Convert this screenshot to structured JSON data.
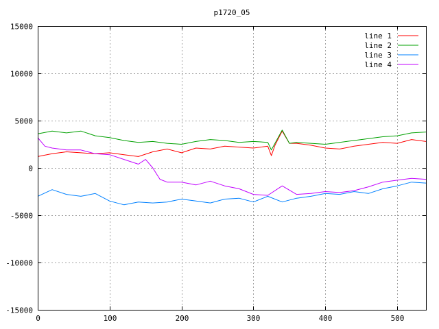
{
  "chart_data": {
    "type": "line",
    "title": "p1720_05",
    "xlabel": "",
    "ylabel": "",
    "xlim": [
      0,
      540
    ],
    "ylim": [
      -15000,
      15000
    ],
    "x_ticks": [
      0,
      100,
      200,
      300,
      400,
      500
    ],
    "y_ticks": [
      -15000,
      -10000,
      -5000,
      0,
      5000,
      10000,
      15000
    ],
    "grid": true,
    "legend_position": "top-right",
    "series": [
      {
        "name": "line 1",
        "color": "#ff0000",
        "x": [
          0,
          20,
          40,
          60,
          80,
          100,
          120,
          140,
          160,
          180,
          200,
          220,
          240,
          260,
          280,
          300,
          320,
          325,
          330,
          340,
          350,
          360,
          380,
          400,
          420,
          440,
          460,
          480,
          500,
          520,
          540
        ],
        "values": [
          1200,
          1500,
          1700,
          1600,
          1500,
          1600,
          1400,
          1200,
          1700,
          2000,
          1600,
          2100,
          2000,
          2300,
          2200,
          2100,
          2300,
          1300,
          2400,
          3900,
          2600,
          2600,
          2400,
          2100,
          2000,
          2300,
          2500,
          2700,
          2600,
          3000,
          2800
        ]
      },
      {
        "name": "line 2",
        "color": "#00a000",
        "x": [
          0,
          20,
          40,
          60,
          80,
          100,
          120,
          140,
          160,
          180,
          200,
          220,
          240,
          260,
          280,
          300,
          320,
          325,
          330,
          340,
          350,
          360,
          380,
          400,
          420,
          440,
          460,
          480,
          500,
          520,
          540
        ],
        "values": [
          3600,
          3900,
          3700,
          3900,
          3400,
          3200,
          2900,
          2700,
          2800,
          2600,
          2500,
          2800,
          3000,
          2900,
          2700,
          2800,
          2700,
          1900,
          2600,
          4000,
          2600,
          2700,
          2600,
          2500,
          2700,
          2900,
          3100,
          3300,
          3400,
          3700,
          3800
        ]
      },
      {
        "name": "line 3",
        "color": "#0080ff",
        "x": [
          0,
          20,
          40,
          60,
          80,
          100,
          120,
          140,
          160,
          180,
          200,
          220,
          240,
          260,
          280,
          300,
          320,
          340,
          360,
          380,
          400,
          420,
          440,
          460,
          480,
          500,
          520,
          540
        ],
        "values": [
          -3000,
          -2300,
          -2800,
          -3000,
          -2700,
          -3500,
          -3900,
          -3600,
          -3700,
          -3600,
          -3300,
          -3500,
          -3700,
          -3300,
          -3200,
          -3600,
          -3000,
          -3600,
          -3200,
          -3000,
          -2700,
          -2800,
          -2500,
          -2700,
          -2200,
          -1900,
          -1500,
          -1600
        ]
      },
      {
        "name": "line 4",
        "color": "#c000ff",
        "x": [
          0,
          10,
          20,
          40,
          60,
          80,
          100,
          120,
          140,
          150,
          160,
          170,
          180,
          200,
          220,
          240,
          260,
          280,
          300,
          320,
          340,
          360,
          380,
          400,
          420,
          440,
          460,
          480,
          500,
          520,
          540
        ],
        "values": [
          3200,
          2300,
          2100,
          1900,
          1900,
          1500,
          1400,
          900,
          400,
          900,
          0,
          -1200,
          -1500,
          -1500,
          -1800,
          -1400,
          -1900,
          -2200,
          -2800,
          -2900,
          -1900,
          -2800,
          -2700,
          -2500,
          -2600,
          -2400,
          -2000,
          -1500,
          -1300,
          -1100,
          -1200
        ]
      }
    ]
  }
}
